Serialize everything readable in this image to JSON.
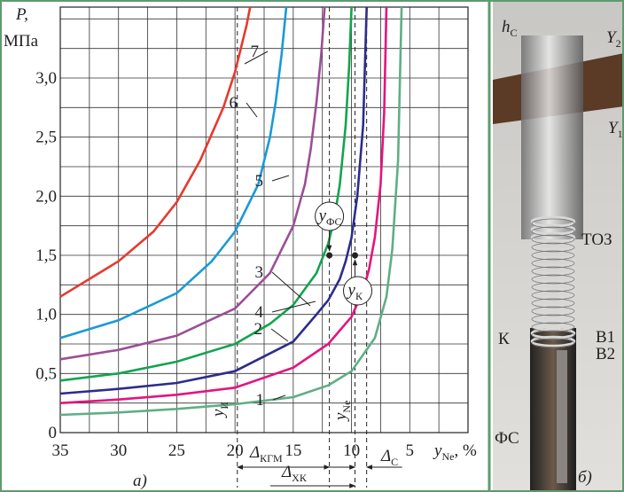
{
  "chart_data": {
    "type": "line",
    "y_label": [
      "P,",
      "МПа"
    ],
    "x_label": {
      "main": "y",
      "sub": "Ne",
      "suffix": ", %"
    },
    "xlim": [
      35,
      0
    ],
    "xticks": [
      35,
      30,
      25,
      20,
      15,
      10,
      5
    ],
    "minor_xticks": [
      32.5,
      27.5,
      22.5,
      17.5,
      12.5,
      7.5,
      2.5,
      0
    ],
    "ylim": [
      0,
      3.6
    ],
    "yticks": [
      0,
      {
        "value": 0.5,
        "label": "0,5"
      },
      {
        "value": 1.0,
        "label": "1,0"
      },
      {
        "value": 1.5,
        "label": "1,5"
      },
      {
        "value": 2.0,
        "label": "2,0"
      },
      {
        "value": 2.5,
        "label": "2,5"
      },
      {
        "value": 3.0,
        "label": "3,0"
      }
    ],
    "minor_yticks": [
      0.25,
      0.75,
      1.25,
      1.75,
      2.25,
      2.75,
      3.25,
      3.5
    ],
    "grid": true,
    "series": [
      {
        "name": "1",
        "color": "#5fae86",
        "x": [
          35,
          30,
          25,
          20,
          15,
          12,
          10,
          8,
          7,
          6.5,
          6,
          5.7
        ],
        "values": [
          0.15,
          0.17,
          0.2,
          0.24,
          0.3,
          0.4,
          0.52,
          0.8,
          1.15,
          1.55,
          2.3,
          3.6
        ]
      },
      {
        "name": "2",
        "color": "#e4147f",
        "x": [
          35,
          30,
          25,
          20,
          15,
          12,
          10,
          9,
          8.5,
          8,
          7.5,
          7.2,
          7
        ],
        "values": [
          0.25,
          0.28,
          0.32,
          0.38,
          0.55,
          0.75,
          0.98,
          1.2,
          1.38,
          1.65,
          2.1,
          2.7,
          3.6
        ]
      },
      {
        "name": "3",
        "color": "#2b2d8c",
        "x": [
          35,
          30,
          25,
          20,
          15,
          13,
          12,
          11,
          10.5,
          10,
          9.5,
          9,
          8.7
        ],
        "values": [
          0.33,
          0.37,
          0.42,
          0.52,
          0.77,
          1.0,
          1.12,
          1.3,
          1.45,
          1.65,
          2.0,
          2.6,
          3.6
        ]
      },
      {
        "name": "4",
        "color": "#13a44e",
        "x": [
          35,
          30,
          25,
          20,
          17,
          15,
          13,
          12,
          11.5,
          11,
          10.5,
          10.2,
          10
        ],
        "values": [
          0.44,
          0.5,
          0.6,
          0.75,
          0.92,
          1.08,
          1.35,
          1.6,
          1.8,
          2.1,
          2.6,
          3.1,
          3.6
        ]
      },
      {
        "name": "5",
        "color": "#9b4f96",
        "x": [
          35,
          30,
          25,
          20,
          17,
          15,
          14,
          13.5,
          13,
          12.6,
          12.3
        ],
        "values": [
          0.62,
          0.7,
          0.82,
          1.05,
          1.35,
          1.75,
          2.1,
          2.4,
          2.8,
          3.2,
          3.6
        ]
      },
      {
        "name": "6",
        "color": "#1a9ad6",
        "x": [
          35,
          30,
          25,
          22,
          20,
          18,
          17,
          16.5,
          16,
          15.6
        ],
        "values": [
          0.8,
          0.95,
          1.18,
          1.45,
          1.7,
          2.1,
          2.5,
          2.8,
          3.2,
          3.6
        ]
      },
      {
        "name": "7",
        "color": "#e53a2e",
        "x": [
          35,
          30,
          27,
          25,
          23,
          21,
          20,
          19.5,
          19,
          18.7
        ],
        "values": [
          1.15,
          1.45,
          1.7,
          1.95,
          2.3,
          2.75,
          3.05,
          3.25,
          3.45,
          3.6
        ]
      }
    ],
    "annotations": {
      "vlines": [
        19.8,
        11.9,
        9.7,
        8.7
      ],
      "points": [
        {
          "x": 11.9,
          "y": 1.5
        },
        {
          "x": 9.7,
          "y": 1.5
        }
      ],
      "labels": [
        {
          "main": "y",
          "sub": "И"
        },
        {
          "main": "y",
          "sub": "Ne"
        },
        {
          "main": "y",
          "sub": "ФС"
        },
        {
          "main": "y",
          "sub": "К"
        },
        {
          "main": "Δ",
          "sub": "КГМ"
        },
        {
          "main": "Δ",
          "sub": "ХК"
        },
        {
          "main": "Δ",
          "sub": "С"
        }
      ],
      "panel": "а)"
    }
  },
  "photo": {
    "labels": [
      {
        "main": "h",
        "sub": "С"
      },
      {
        "main": "Y",
        "sub": "2"
      },
      {
        "main": "Y",
        "sub": "1"
      },
      {
        "main": "ТОЗ",
        "sub": ""
      },
      {
        "main": "В1",
        "sub": ""
      },
      {
        "main": "В2",
        "sub": ""
      },
      {
        "main": "К",
        "sub": ""
      },
      {
        "main": "ФС",
        "sub": ""
      }
    ],
    "panel": "б)"
  }
}
